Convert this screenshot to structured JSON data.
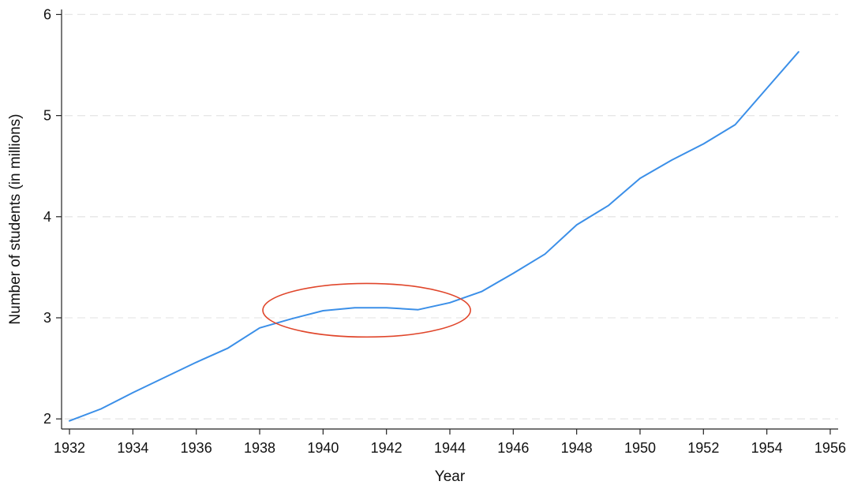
{
  "chart_data": {
    "type": "line",
    "title": "",
    "xlabel": "Year",
    "ylabel": "Number of students (in millions)",
    "xlim": [
      1931.75,
      1956.25
    ],
    "ylim": [
      1.9,
      6.05
    ],
    "x_ticks": [
      1932,
      1934,
      1936,
      1938,
      1940,
      1942,
      1944,
      1946,
      1948,
      1950,
      1952,
      1954,
      1956
    ],
    "y_ticks": [
      2,
      3,
      4,
      5,
      6
    ],
    "grid": "horizontal dashed",
    "legend": "none",
    "series": [
      {
        "color": "#3b8fe8",
        "x": [
          1932,
          1933,
          1934,
          1935,
          1936,
          1937,
          1938,
          1939,
          1940,
          1941,
          1942,
          1943,
          1944,
          1945,
          1946,
          1947,
          1948,
          1949,
          1950,
          1951,
          1952,
          1953,
          1954,
          1955
        ],
        "y": [
          1.98,
          2.1,
          2.26,
          2.41,
          2.56,
          2.7,
          2.9,
          2.99,
          3.07,
          3.1,
          3.1,
          3.08,
          3.15,
          3.26,
          3.44,
          3.63,
          3.92,
          4.11,
          4.38,
          4.56,
          4.72,
          4.91,
          5.27,
          5.63
        ]
      }
    ],
    "annotations": [
      {
        "type": "ellipse",
        "color": "#e0462b",
        "x_range": [
          1938.1,
          1944.65
        ],
        "y_range": [
          2.81,
          3.34
        ]
      }
    ]
  }
}
